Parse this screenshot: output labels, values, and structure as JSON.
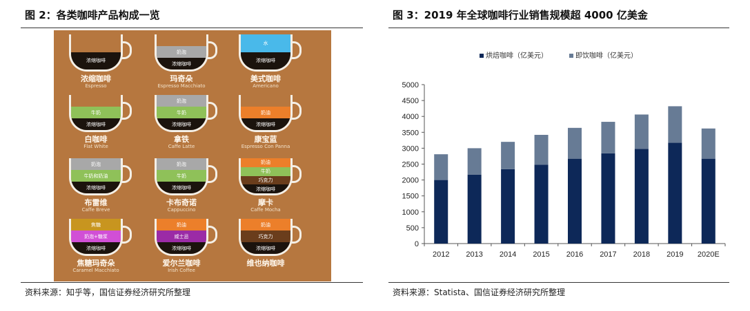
{
  "left_panel": {
    "title": "图 2：各类咖啡产品构成一览",
    "source": "资料来源：知乎等，国信证券经济研究所整理",
    "cups": [
      {
        "name": "浓缩咖啡",
        "sub": "Espresso",
        "layers": [
          {
            "label": "",
            "color": "#b6773f"
          },
          {
            "label": "浓缩咖啡",
            "color": "#1b130d"
          }
        ]
      },
      {
        "name": "玛奇朵",
        "sub": "Espresso Macchiato",
        "layers": [
          {
            "label": "",
            "color": "#b6773f"
          },
          {
            "label": "奶泡",
            "color": "#a8a8a8"
          },
          {
            "label": "浓缩咖啡",
            "color": "#1b130d"
          }
        ]
      },
      {
        "name": "美式咖啡",
        "sub": "Americano",
        "layers": [
          {
            "label": "水",
            "color": "#49b9ea"
          },
          {
            "label": "浓缩咖啡",
            "color": "#1b130d"
          }
        ]
      },
      {
        "name": "白咖啡",
        "sub": "Flat White",
        "layers": [
          {
            "label": "",
            "color": "#b6773f"
          },
          {
            "label": "牛奶",
            "color": "#8fc159"
          },
          {
            "label": "浓缩咖啡",
            "color": "#1b130d"
          }
        ]
      },
      {
        "name": "拿铁",
        "sub": "Caffe Latte",
        "layers": [
          {
            "label": "奶泡",
            "color": "#a8a8a8"
          },
          {
            "label": "牛奶",
            "color": "#8fc159"
          },
          {
            "label": "浓缩咖啡",
            "color": "#1b130d"
          }
        ]
      },
      {
        "name": "康宝蓝",
        "sub": "Espresso Con Panna",
        "layers": [
          {
            "label": "",
            "color": "#b6773f"
          },
          {
            "label": "奶油",
            "color": "#ec7f2a"
          },
          {
            "label": "浓缩咖啡",
            "color": "#1b130d"
          }
        ]
      },
      {
        "name": "布雷维",
        "sub": "Caffe Breve",
        "layers": [
          {
            "label": "奶泡",
            "color": "#a8a8a8"
          },
          {
            "label": "牛奶和奶油",
            "color": "#8fc159"
          },
          {
            "label": "浓缩咖啡",
            "color": "#1b130d"
          }
        ]
      },
      {
        "name": "卡布奇诺",
        "sub": "Cappuccino",
        "layers": [
          {
            "label": "奶泡",
            "color": "#a8a8a8"
          },
          {
            "label": "牛奶",
            "color": "#8fc159"
          },
          {
            "label": "浓缩咖啡",
            "color": "#1b130d"
          }
        ]
      },
      {
        "name": "摩卡",
        "sub": "Caffe Mocha",
        "layers": [
          {
            "label": "奶油",
            "color": "#ec7f2a"
          },
          {
            "label": "牛奶",
            "color": "#8fc159"
          },
          {
            "label": "巧克力",
            "color": "#6a3d1c"
          },
          {
            "label": "浓缩咖啡",
            "color": "#1b130d"
          }
        ]
      },
      {
        "name": "焦糖玛奇朵",
        "sub": "Caramel Macchiato",
        "layers": [
          {
            "label": "焦糖",
            "color": "#c8951f"
          },
          {
            "label": "奶泡+糖浆",
            "color": "#d14fd6"
          },
          {
            "label": "浓缩咖啡",
            "color": "#1b130d"
          }
        ]
      },
      {
        "name": "爱尔兰咖啡",
        "sub": "Irish Coffee",
        "layers": [
          {
            "label": "奶油",
            "color": "#ec7f2a"
          },
          {
            "label": "威士忌",
            "color": "#9b2ba6"
          },
          {
            "label": "浓缩咖啡",
            "color": "#1b130d"
          }
        ]
      },
      {
        "name": "维也纳咖啡",
        "sub": "",
        "layers": [
          {
            "label": "奶油",
            "color": "#ec7f2a"
          },
          {
            "label": "巧克力",
            "color": "#6a3d1c"
          },
          {
            "label": "浓缩咖啡",
            "color": "#1b130d"
          }
        ]
      }
    ]
  },
  "right_panel": {
    "title": "图 3：2019 年全球咖啡行业销售规模超 4000 亿美金",
    "source": "资料来源：Statista、国信证券经济研究所整理"
  },
  "chart_data": {
    "type": "bar",
    "stacked": true,
    "categories": [
      "2012",
      "2013",
      "2014",
      "2015",
      "2016",
      "2017",
      "2018",
      "2019",
      "2020E"
    ],
    "series": [
      {
        "name": "烘焙咖啡（亿美元）",
        "color": "#0d2858",
        "values": [
          2000,
          2170,
          2340,
          2480,
          2670,
          2840,
          2980,
          3170,
          2670
        ]
      },
      {
        "name": "即饮咖啡（亿美元）",
        "color": "#677b95",
        "values": [
          810,
          830,
          860,
          940,
          970,
          990,
          1080,
          1150,
          950
        ]
      }
    ],
    "ylim": [
      0,
      5000
    ],
    "yticks": [
      0,
      500,
      1000,
      1500,
      2000,
      2500,
      3000,
      3500,
      4000,
      4500,
      5000
    ],
    "grid": false,
    "legend_position": "top"
  }
}
